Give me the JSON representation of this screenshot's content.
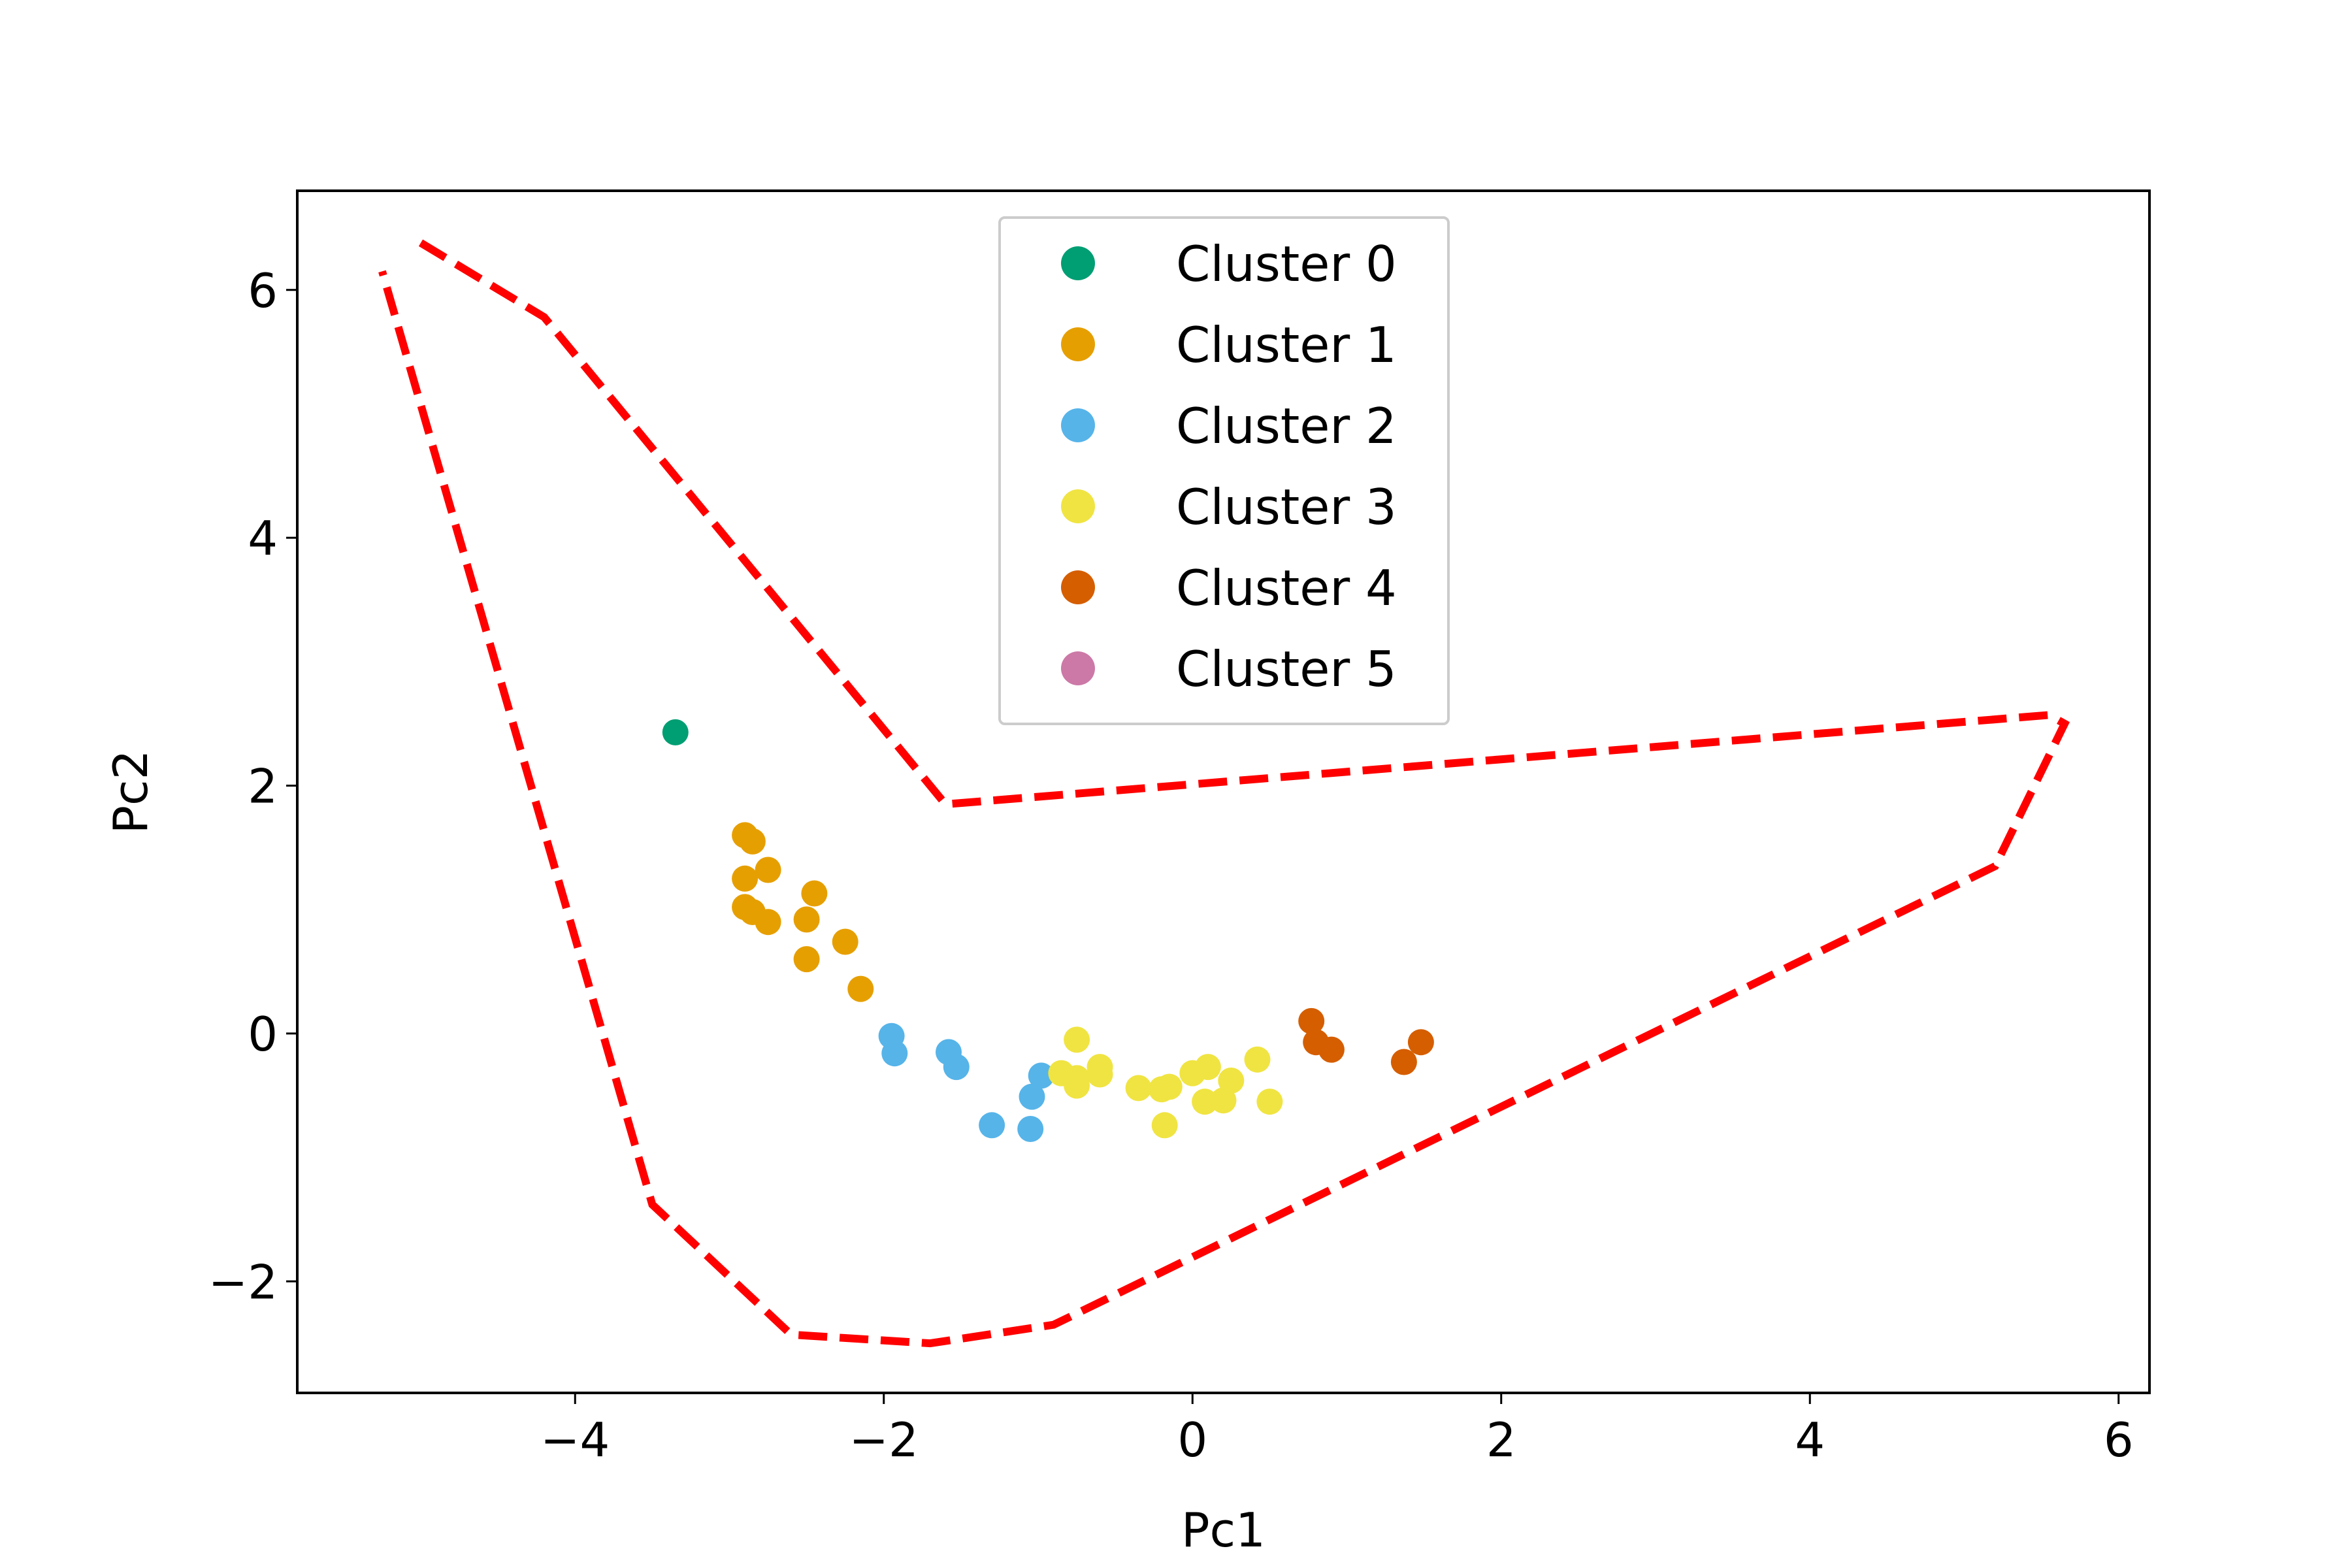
{
  "chart_data": {
    "type": "scatter",
    "title": "",
    "xlabel": "Pc1",
    "ylabel": "Pc2",
    "xlim": [
      -5.8,
      6.2
    ],
    "ylim": [
      -2.9,
      6.8
    ],
    "xticks": [
      -4,
      -2,
      0,
      2,
      4,
      6
    ],
    "yticks": [
      -2,
      0,
      2,
      4,
      6
    ],
    "xtick_labels": [
      "−4",
      "−2",
      "0",
      "2",
      "4",
      "6"
    ],
    "ytick_labels": [
      "−2",
      "0",
      "2",
      "4",
      "6"
    ],
    "grid": false,
    "legend_position": "upper-center",
    "series": [
      {
        "name": "Cluster 0",
        "color": "#009e73",
        "points": [
          [
            -3.35,
            2.43
          ]
        ]
      },
      {
        "name": "Cluster 1",
        "color": "#e69f00",
        "points": [
          [
            -2.9,
            1.6
          ],
          [
            -2.85,
            1.55
          ],
          [
            -2.75,
            1.32
          ],
          [
            -2.9,
            1.25
          ],
          [
            -2.45,
            1.13
          ],
          [
            -2.9,
            1.02
          ],
          [
            -2.85,
            0.98
          ],
          [
            -2.75,
            0.9
          ],
          [
            -2.5,
            0.92
          ],
          [
            -2.25,
            0.74
          ],
          [
            -2.5,
            0.6
          ],
          [
            -2.15,
            0.36
          ]
        ]
      },
      {
        "name": "Cluster 2",
        "color": "#56b4e9",
        "points": [
          [
            -1.95,
            -0.02
          ],
          [
            -1.93,
            -0.16
          ],
          [
            -1.58,
            -0.15
          ],
          [
            -1.53,
            -0.27
          ],
          [
            -0.98,
            -0.34
          ],
          [
            -1.04,
            -0.51
          ],
          [
            -1.3,
            -0.74
          ],
          [
            -1.05,
            -0.77
          ]
        ]
      },
      {
        "name": "Cluster 3",
        "color": "#f0e442",
        "points": [
          [
            -0.75,
            -0.05
          ],
          [
            -0.85,
            -0.32
          ],
          [
            -0.75,
            -0.36
          ],
          [
            -0.6,
            -0.27
          ],
          [
            -0.6,
            -0.33
          ],
          [
            -0.75,
            -0.42
          ],
          [
            -0.35,
            -0.44
          ],
          [
            -0.2,
            -0.45
          ],
          [
            -0.15,
            -0.43
          ],
          [
            0.0,
            -0.32
          ],
          [
            0.1,
            -0.27
          ],
          [
            0.25,
            -0.38
          ],
          [
            0.42,
            -0.21
          ],
          [
            0.08,
            -0.55
          ],
          [
            0.2,
            -0.54
          ],
          [
            0.5,
            -0.55
          ],
          [
            -0.18,
            -0.74
          ]
        ]
      },
      {
        "name": "Cluster 4",
        "color": "#d55e00",
        "points": [
          [
            0.77,
            0.1
          ],
          [
            0.8,
            -0.07
          ],
          [
            0.9,
            -0.13
          ],
          [
            1.37,
            -0.23
          ],
          [
            1.48,
            -0.07
          ]
        ]
      },
      {
        "name": "Cluster 5",
        "color": "#cc79a7",
        "points": []
      }
    ],
    "boundary": {
      "color": "#ff0000",
      "style": "dashed",
      "points": [
        [
          -5.0,
          6.38
        ],
        [
          -4.2,
          5.78
        ],
        [
          -1.6,
          1.85
        ],
        [
          5.55,
          2.57
        ],
        [
          5.65,
          2.5
        ],
        [
          5.2,
          1.35
        ],
        [
          -0.9,
          -2.35
        ],
        [
          -1.7,
          -2.5
        ],
        [
          -2.6,
          -2.43
        ],
        [
          -3.5,
          -1.38
        ],
        [
          -5.25,
          6.15
        ]
      ]
    }
  }
}
